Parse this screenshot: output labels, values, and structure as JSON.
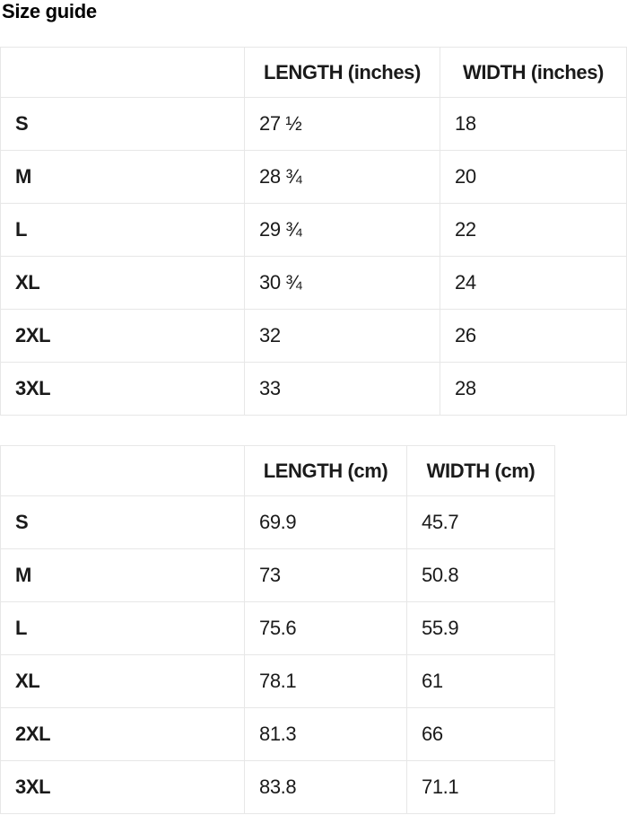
{
  "page": {
    "title": "Size guide"
  },
  "colors": {
    "border": "#e7e7e7",
    "text": "#1a1a1a",
    "background": "#ffffff"
  },
  "tables": {
    "inches": {
      "headers": {
        "size": "",
        "length": "LENGTH (inches)",
        "width": "WIDTH (inches)"
      },
      "rows": [
        {
          "size": "S",
          "length": "27 ½",
          "width": "18"
        },
        {
          "size": "M",
          "length": "28 ¾",
          "width": "20"
        },
        {
          "size": "L",
          "length": "29 ¾",
          "width": "22"
        },
        {
          "size": "XL",
          "length": "30 ¾",
          "width": "24"
        },
        {
          "size": "2XL",
          "length": "32",
          "width": "26"
        },
        {
          "size": "3XL",
          "length": "33",
          "width": "28"
        }
      ]
    },
    "cm": {
      "headers": {
        "size": "",
        "length": "LENGTH (cm)",
        "width": "WIDTH (cm)"
      },
      "rows": [
        {
          "size": "S",
          "length": "69.9",
          "width": "45.7"
        },
        {
          "size": "M",
          "length": "73",
          "width": "50.8"
        },
        {
          "size": "L",
          "length": "75.6",
          "width": "55.9"
        },
        {
          "size": "XL",
          "length": "78.1",
          "width": "61"
        },
        {
          "size": "2XL",
          "length": "81.3",
          "width": "66"
        },
        {
          "size": "3XL",
          "length": "83.8",
          "width": "71.1"
        }
      ]
    }
  }
}
